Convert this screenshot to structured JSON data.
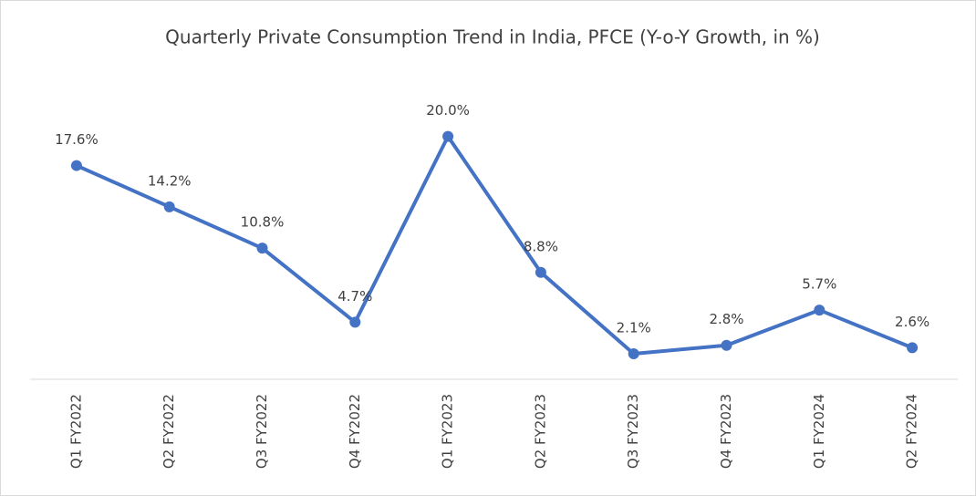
{
  "chart_data": {
    "type": "line",
    "title": "Quarterly Private Consumption Trend in India, PFCE (Y-o-Y Growth, in %)",
    "categories": [
      "Q1 FY2022",
      "Q2 FY2022",
      "Q3 FY2022",
      "Q4 FY2022",
      "Q1 FY2023",
      "Q2 FY2023",
      "Q3 FY2023",
      "Q4 FY2023",
      "Q1 FY2024",
      "Q2 FY2024"
    ],
    "values": [
      17.6,
      14.2,
      10.8,
      4.7,
      20.0,
      8.8,
      2.1,
      2.8,
      5.7,
      2.6
    ],
    "value_labels": [
      "17.6%",
      "14.2%",
      "10.8%",
      "4.7%",
      "20.0%",
      "8.8%",
      "2.1%",
      "2.8%",
      "5.7%",
      "2.6%"
    ],
    "color": "#4472c4",
    "ylim": [
      0,
      25
    ]
  }
}
